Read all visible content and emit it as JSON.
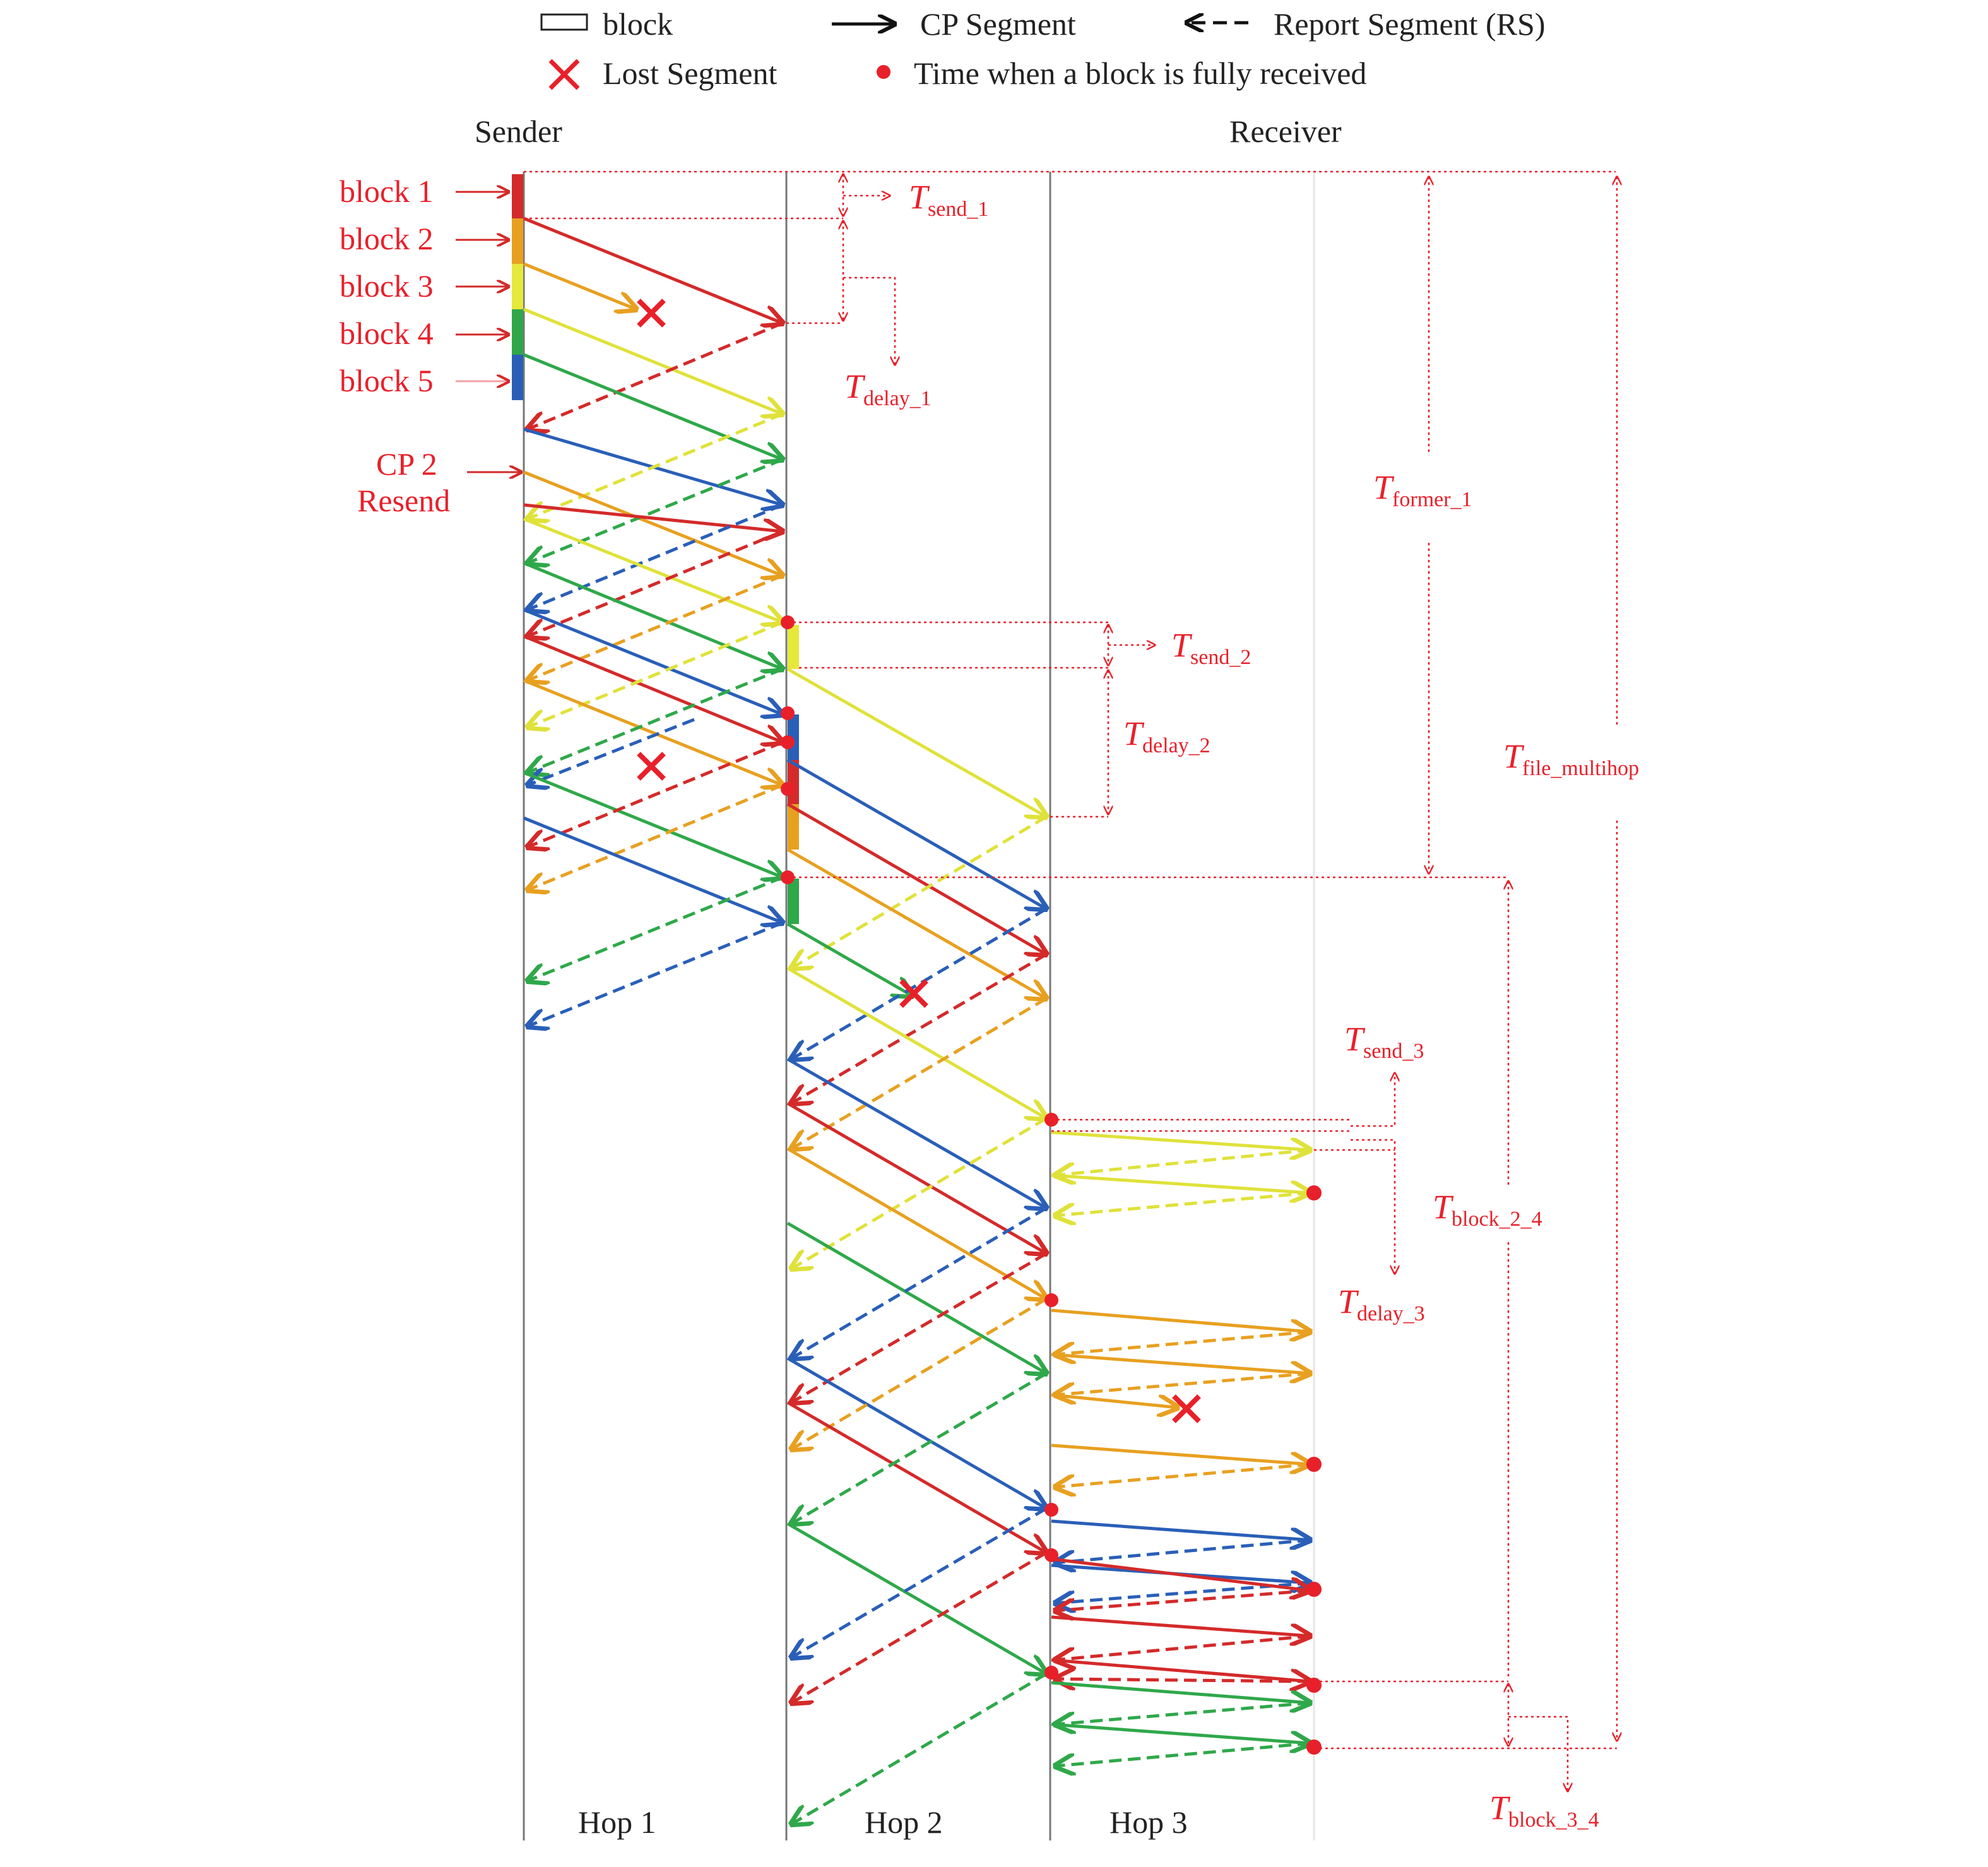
{
  "legend": {
    "block": "block",
    "cp_segment": "CP Segment",
    "report_segment": "Report Segment (RS)",
    "lost_segment": "Lost Segment",
    "block_received": "Time when a block is fully received"
  },
  "headers": {
    "sender": "Sender",
    "receiver": "Receiver"
  },
  "hops": [
    "Hop 1",
    "Hop 2",
    "Hop 3"
  ],
  "blocks": [
    "block 1",
    "block 2",
    "block 3",
    "block 4",
    "block 5"
  ],
  "cp_resend": {
    "line1": "CP 2",
    "line2": "Resend"
  },
  "timers": {
    "send_1": {
      "main": "T",
      "sub": "send_1"
    },
    "delay_1": {
      "main": "T",
      "sub": "delay_1"
    },
    "former_1": {
      "main": "T",
      "sub": "former_1"
    },
    "send_2": {
      "main": "T",
      "sub": "send_2"
    },
    "delay_2": {
      "main": "T",
      "sub": "delay_2"
    },
    "file_multihop": {
      "main": "T",
      "sub": "file_multihop"
    },
    "send_3": {
      "main": "T",
      "sub": "send_3"
    },
    "delay_3": {
      "main": "T",
      "sub": "delay_3"
    },
    "block_2_4": {
      "main": "T",
      "sub": "block_2_4"
    },
    "block_3_4": {
      "main": "T",
      "sub": "block_3_4"
    }
  },
  "colors": {
    "block1": "#d42a2a",
    "block2": "#e8a020",
    "block3": "#e6e83a",
    "block4": "#2fa84a",
    "block5": "#2a5fb8",
    "annotation": "#e8202a",
    "node_line": "#777777"
  }
}
